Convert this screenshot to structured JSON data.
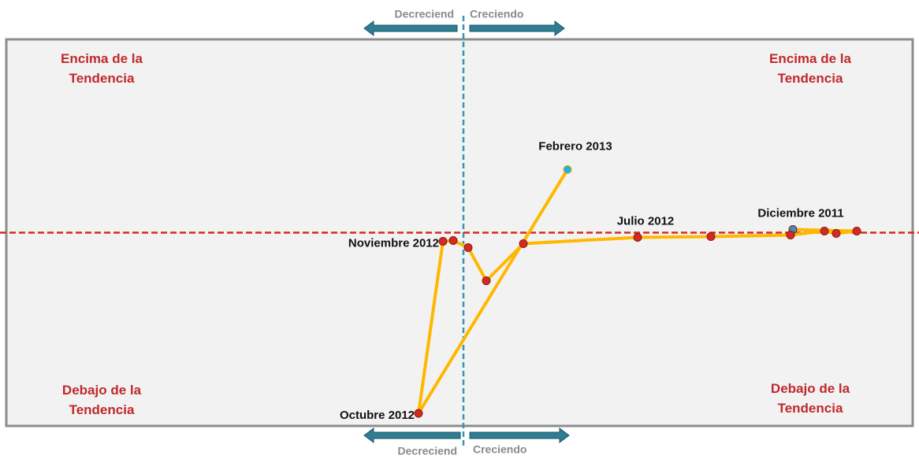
{
  "chart_data": {
    "type": "line",
    "x": [
      83.6,
      99.8,
      94.6,
      91.6,
      83.0,
      62.8,
      44.2,
      15.2,
      5.8,
      1.2,
      -2.6,
      -5.2,
      -11.4,
      26.4
    ],
    "y": [
      0.8,
      0.4,
      -0.2,
      0.4,
      -0.6,
      -1.0,
      -1.2,
      -2.8,
      -12.2,
      -3.8,
      -2.0,
      -2.2,
      -45.8,
      16.0
    ],
    "point_labels": [
      "Diciembre 2011",
      null,
      null,
      null,
      null,
      null,
      "Julio 2012",
      null,
      null,
      null,
      null,
      "Noviembre 2012",
      "Octubre 2012",
      "Febrero 2013"
    ],
    "line_color": "#ffb800",
    "point_color": "#d42a20",
    "start_color": "#3a93b3",
    "end_color": "#1fb2e8",
    "xlim": [
      -116,
      114
    ],
    "ylim": [
      -49,
      49
    ],
    "quadrants": {
      "top_left": "Encima de la\nTendencia",
      "top_right": "Encima de la\nTendencia",
      "bottom_left": "Debajo de la\nTendencia",
      "bottom_right": "Debajo de la\nTendencia"
    },
    "arrows": {
      "top_left": "Decreciend",
      "top_right": "Creciendo",
      "bottom_left": "Decreciend",
      "bottom_right": "Creciendo"
    }
  }
}
